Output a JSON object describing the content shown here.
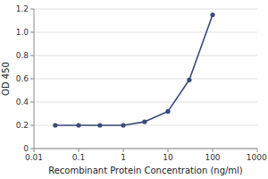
{
  "chart_data": {
    "type": "line",
    "x_label": "Recombinant Protein Concentration (ng/ml)",
    "y_label": "OD 450",
    "x": [
      0.03,
      0.1,
      0.3,
      1,
      3,
      10,
      30,
      100
    ],
    "values": [
      0.2,
      0.2,
      0.2,
      0.2,
      0.23,
      0.32,
      0.59,
      1.15
    ],
    "color": "#3a4a7a",
    "marker": "circle",
    "log": "x",
    "xlim": [
      0.01,
      1000
    ],
    "ylim": [
      0,
      1.2
    ],
    "xticks": [
      0.01,
      0.1,
      1,
      10,
      100,
      1000
    ],
    "yticks": [
      0,
      0.2,
      0.4,
      0.6,
      0.8,
      {
        "value": 1.0,
        "label": "1.0"
      },
      1.2
    ],
    "grid": "y"
  }
}
